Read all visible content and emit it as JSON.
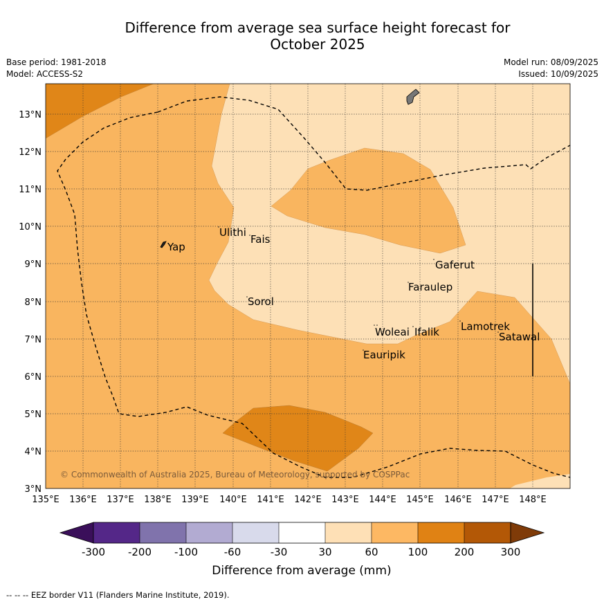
{
  "title_line1": "Difference from average sea surface height forecast for",
  "title_line2": "October 2025",
  "base_period": "Base period: 1981-2018",
  "model": "Model: ACCESS-S2",
  "model_run": "Model run: 08/09/2025",
  "issued": "Issued: 10/09/2025",
  "copyright": "© Commonwealth of Australia 2025, Bureau of Meteorology, supported by COSPPac",
  "footer_note": "--  --  -- EEZ border V11 (Flanders Marine Institute, 2019).",
  "map": {
    "lon_range": [
      135,
      149
    ],
    "lat_range": [
      3,
      13.8
    ],
    "lon_ticks": [
      "135°E",
      "136°E",
      "137°E",
      "138°E",
      "139°E",
      "140°E",
      "141°E",
      "142°E",
      "143°E",
      "144°E",
      "145°E",
      "146°E",
      "147°E",
      "148°E"
    ],
    "lat_ticks": [
      "3°N",
      "4°N",
      "5°N",
      "6°N",
      "7°N",
      "8°N",
      "9°N",
      "10°N",
      "11°N",
      "12°N",
      "13°N"
    ],
    "islands": [
      {
        "name": "Yap"
      },
      {
        "name": "Ulithi"
      },
      {
        "name": "Fais"
      },
      {
        "name": "Sorol"
      },
      {
        "name": "Gaferut"
      },
      {
        "name": "Faraulep"
      },
      {
        "name": "Woleai"
      },
      {
        "name": "Ifalik"
      },
      {
        "name": "Eauripik"
      },
      {
        "name": "Lamotrek"
      },
      {
        "name": "Satawal"
      }
    ],
    "fill_colors": {
      "c30_60": "#fde0b6",
      "c60_100": "#f9b55f",
      "c100_200": "#e08618"
    }
  },
  "colorbar": {
    "ticks": [
      "-300",
      "-200",
      "-100",
      "-60",
      "-30",
      "30",
      "60",
      "100",
      "200",
      "300"
    ],
    "colors": [
      "#3a0f5a",
      "#542788",
      "#8073ac",
      "#b2abd2",
      "#d8daeb",
      "#ffffff",
      "#fee0b6",
      "#fdb863",
      "#e08214",
      "#b35806",
      "#7f3b08"
    ],
    "label": "Difference from average (mm)"
  }
}
